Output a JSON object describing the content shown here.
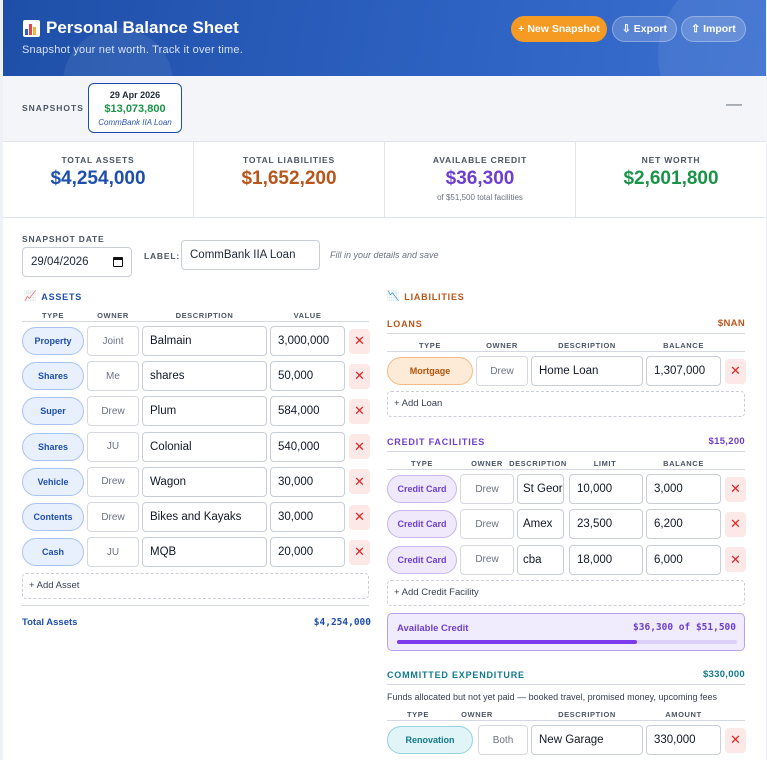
{
  "header": {
    "title": "Personal Balance Sheet",
    "subtitle": "Snapshot your net worth. Track it over time.",
    "new_snapshot": "+ New Snapshot",
    "export": "Export",
    "import": "Import"
  },
  "snapshots": {
    "label": "SNAPSHOTS",
    "items": [
      {
        "date": "29 Apr 2026",
        "value": "$13,073,800",
        "name": "CommBank IIA Loan"
      }
    ],
    "collapse": "—"
  },
  "summary": {
    "total_assets": {
      "label": "TOTAL ASSETS",
      "value": "$4,254,000"
    },
    "total_liabilities": {
      "label": "TOTAL LIABILITIES",
      "value": "$1,652,200"
    },
    "available_credit": {
      "label": "AVAILABLE CREDIT",
      "value": "$36,300",
      "sub": "of $51,500 total facilities"
    },
    "net_worth": {
      "label": "NET WORTH",
      "value": "$2,601,800"
    }
  },
  "form": {
    "date_label": "SNAPSHOT DATE",
    "date_value": "29/04/2026",
    "label_label": "LABEL:",
    "label_value": "CommBank IIA Loan",
    "hint": "Fill in your details and save"
  },
  "assets": {
    "title": "ASSETS",
    "headers": [
      "TYPE",
      "OWNER",
      "DESCRIPTION",
      "VALUE"
    ],
    "rows": [
      {
        "type": "Property",
        "owner": "Joint",
        "description": "Balmain",
        "value": "3,000,000"
      },
      {
        "type": "Shares",
        "owner": "Me",
        "description": "shares",
        "value": "50,000"
      },
      {
        "type": "Super",
        "owner": "Drew",
        "description": "Plum",
        "value": "584,000"
      },
      {
        "type": "Shares",
        "owner": "JU",
        "description": "Colonial",
        "value": "540,000"
      },
      {
        "type": "Vehicle",
        "owner": "Drew",
        "description": "Wagon",
        "value": "30,000"
      },
      {
        "type": "Contents",
        "owner": "Drew",
        "description": "Bikes and Kayaks",
        "value": "30,000"
      },
      {
        "type": "Cash",
        "owner": "JU",
        "description": "MQB",
        "value": "20,000"
      }
    ],
    "add_label": "+ Add Asset",
    "total_label": "Total Assets",
    "total_value": "$4,254,000"
  },
  "liabilities": {
    "title": "LIABILITIES",
    "loans": {
      "title": "LOANS",
      "amount": "$NAN",
      "headers": [
        "TYPE",
        "OWNER",
        "DESCRIPTION",
        "BALANCE"
      ],
      "rows": [
        {
          "type": "Mortgage",
          "owner": "Drew",
          "description": "Home Loan",
          "balance": "1,307,000"
        }
      ],
      "add_label": "+ Add Loan"
    },
    "credit": {
      "title": "CREDIT FACILITIES",
      "amount": "$15,200",
      "headers": [
        "TYPE",
        "OWNER",
        "DESCRIPTION",
        "LIMIT",
        "BALANCE"
      ],
      "rows": [
        {
          "type": "Credit Card",
          "owner": "Drew",
          "description": "St George",
          "limit": "10,000",
          "balance": "3,000"
        },
        {
          "type": "Credit Card",
          "owner": "Drew",
          "description": "Amex",
          "limit": "23,500",
          "balance": "6,200"
        },
        {
          "type": "Credit Card",
          "owner": "Drew",
          "description": "cba",
          "limit": "18,000",
          "balance": "6,000"
        }
      ],
      "add_label": "+ Add Credit Facility",
      "available_label": "Available Credit",
      "available_value": "$36,300 of $51,500",
      "available_fraction": 0.705
    },
    "committed": {
      "title": "COMMITTED EXPENDITURE",
      "amount": "$330,000",
      "hint": "Funds allocated but not yet paid — booked travel, promised money, upcoming fees",
      "headers": [
        "TYPE",
        "OWNER",
        "DESCRIPTION",
        "AMOUNT"
      ],
      "rows": [
        {
          "type": "Renovation",
          "owner": "Both",
          "description": "New Garage",
          "amount": "330,000"
        }
      ]
    }
  },
  "colors": {
    "assets": "#1f4fae",
    "liabilities": "#b8561c",
    "credit": "#6d3fd0",
    "net_worth": "#1a9449",
    "committed": "#117a8b",
    "accent": "#f59a23"
  }
}
